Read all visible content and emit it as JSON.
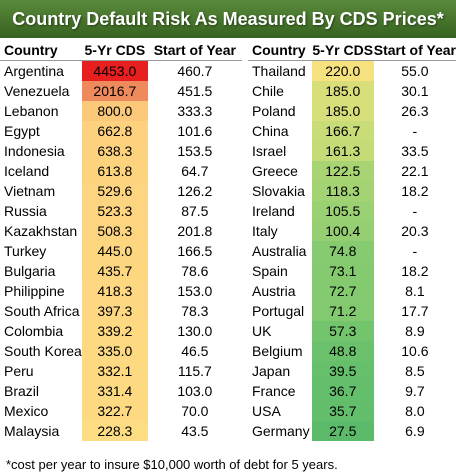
{
  "title": "Country Default Risk As Measured By CDS Prices*",
  "headers": {
    "country": "Country",
    "cds": "5-Yr CDS",
    "start": "Start of Year"
  },
  "left_table": [
    {
      "country": "Argentina",
      "cds": "4453.0",
      "start": "460.7",
      "color": "#e81f1f"
    },
    {
      "country": "Venezuela",
      "cds": "2016.7",
      "start": "451.5",
      "color": "#ef8a5c"
    },
    {
      "country": "Lebanon",
      "cds": "800.0",
      "start": "333.3",
      "color": "#fcc97a"
    },
    {
      "country": "Egypt",
      "cds": "662.8",
      "start": "101.6",
      "color": "#fdd17d"
    },
    {
      "country": "Indonesia",
      "cds": "638.3",
      "start": "153.5",
      "color": "#fdd27e"
    },
    {
      "country": "Iceland",
      "cds": "613.8",
      "start": "64.7",
      "color": "#fdd37e"
    },
    {
      "country": "Vietnam",
      "cds": "529.6",
      "start": "126.2",
      "color": "#fdd47f"
    },
    {
      "country": "Russia",
      "cds": "523.3",
      "start": "87.5",
      "color": "#fdd47f"
    },
    {
      "country": "Kazakhstan",
      "cds": "508.3",
      "start": "201.8",
      "color": "#fdd580"
    },
    {
      "country": "Turkey",
      "cds": "445.0",
      "start": "166.5",
      "color": "#fdd680"
    },
    {
      "country": "Bulgaria",
      "cds": "435.7",
      "start": "78.6",
      "color": "#fdd680"
    },
    {
      "country": "Philippine",
      "cds": "418.3",
      "start": "153.0",
      "color": "#fdd781"
    },
    {
      "country": "South Africa",
      "cds": "397.3",
      "start": "78.3",
      "color": "#fdd781"
    },
    {
      "country": "Colombia",
      "cds": "339.2",
      "start": "130.0",
      "color": "#fdd982"
    },
    {
      "country": "South Korea",
      "cds": "335.0",
      "start": "46.5",
      "color": "#fdd982"
    },
    {
      "country": "Peru",
      "cds": "332.1",
      "start": "115.7",
      "color": "#fdd982"
    },
    {
      "country": "Brazil",
      "cds": "331.4",
      "start": "103.0",
      "color": "#fdd982"
    },
    {
      "country": "Mexico",
      "cds": "322.7",
      "start": "70.0",
      "color": "#fdda82"
    },
    {
      "country": "Malaysia",
      "cds": "228.3",
      "start": "43.5",
      "color": "#fddd83"
    }
  ],
  "right_table": [
    {
      "country": "Thailand",
      "cds": "220.0",
      "start": "55.0",
      "color": "#f5e27e"
    },
    {
      "country": "Chile",
      "cds": "185.0",
      "start": "30.1",
      "color": "#d8df7a"
    },
    {
      "country": "Poland",
      "cds": "185.0",
      "start": "26.3",
      "color": "#d6df7a"
    },
    {
      "country": "China",
      "cds": "166.7",
      "start": "-",
      "color": "#c8dc78"
    },
    {
      "country": "Israel",
      "cds": "161.3",
      "start": "33.5",
      "color": "#c4db78"
    },
    {
      "country": "Greece",
      "cds": "122.5",
      "start": "22.1",
      "color": "#a8d474"
    },
    {
      "country": "Slovakia",
      "cds": "118.3",
      "start": "18.2",
      "color": "#a4d373"
    },
    {
      "country": "Ireland",
      "cds": "105.5",
      "start": "-",
      "color": "#9ad172"
    },
    {
      "country": "Italy",
      "cds": "100.4",
      "start": "20.3",
      "color": "#95cf71"
    },
    {
      "country": "Australia",
      "cds": "74.8",
      "start": "-",
      "color": "#86cb6f"
    },
    {
      "country": "Spain",
      "cds": "73.1",
      "start": "18.2",
      "color": "#85ca6f"
    },
    {
      "country": "Austria",
      "cds": "72.7",
      "start": "8.1",
      "color": "#84ca6f"
    },
    {
      "country": "Portugal",
      "cds": "71.2",
      "start": "17.7",
      "color": "#82c96f"
    },
    {
      "country": "UK",
      "cds": "57.3",
      "start": "8.9",
      "color": "#73c56d"
    },
    {
      "country": "Belgium",
      "cds": "48.8",
      "start": "10.6",
      "color": "#6cc26c"
    },
    {
      "country": "Japan",
      "cds": "39.5",
      "start": "8.5",
      "color": "#66c06b"
    },
    {
      "country": "France",
      "cds": "36.7",
      "start": "9.7",
      "color": "#63bf6b"
    },
    {
      "country": "USA",
      "cds": "35.7",
      "start": "8.0",
      "color": "#62be6b"
    },
    {
      "country": "Germany",
      "cds": "27.5",
      "start": "6.9",
      "color": "#5bbb6a"
    }
  ],
  "footnote": "*cost per year to insure $10,000 worth of debt for 5 years."
}
